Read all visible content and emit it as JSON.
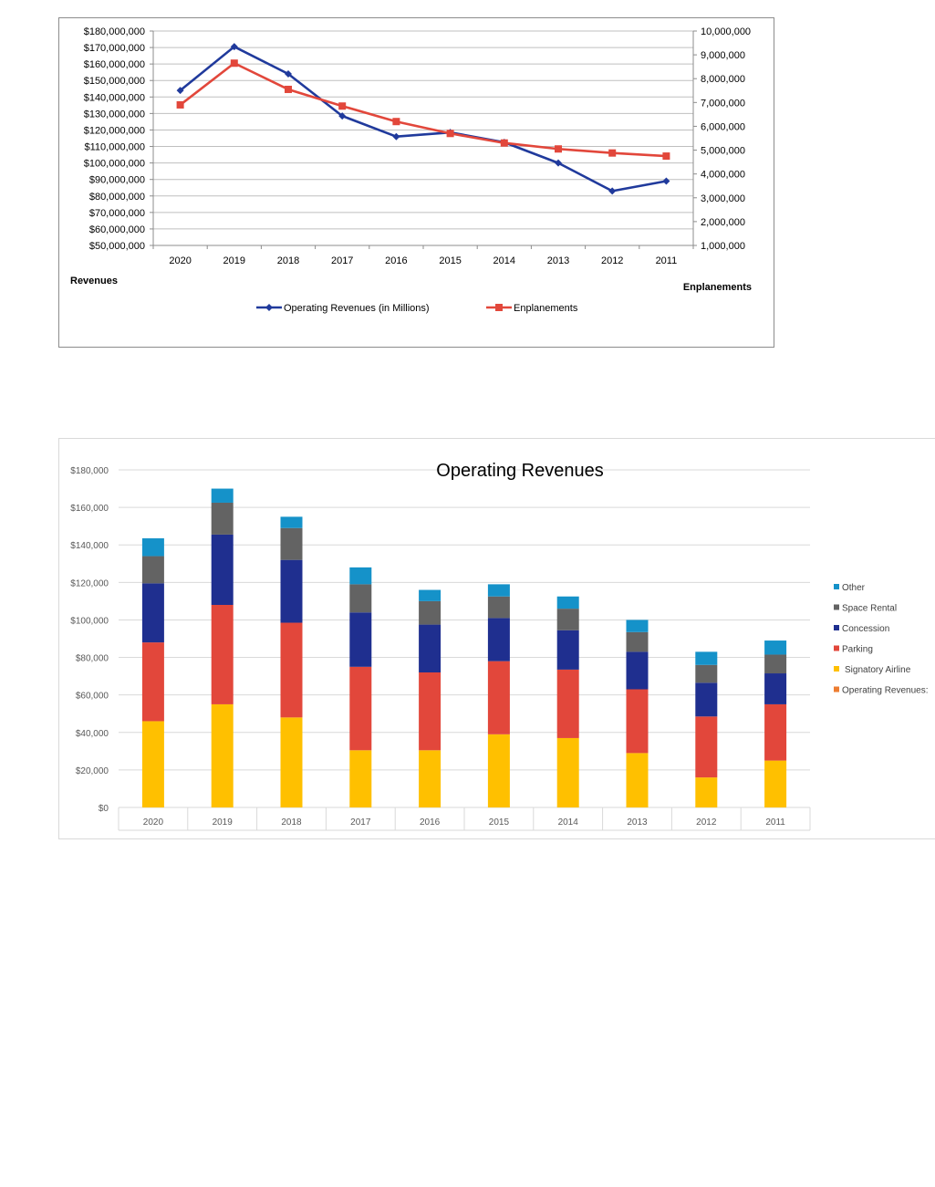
{
  "chart_data": [
    {
      "type": "line",
      "title": "",
      "categories": [
        "2020",
        "2019",
        "2018",
        "2017",
        "2016",
        "2015",
        "2014",
        "2013",
        "2012",
        "2011"
      ],
      "series": [
        {
          "name": "Operating Revenues (in Millions)",
          "axis": "left",
          "color": "#203a9c",
          "values": [
            144000000,
            170500000,
            154000000,
            128500000,
            116000000,
            118500000,
            112500000,
            100000000,
            83000000,
            89000000
          ]
        },
        {
          "name": "Enplanements",
          "axis": "right",
          "color": "#e2473b",
          "values": [
            6900000,
            8650000,
            7550000,
            6850000,
            6200000,
            5700000,
            5300000,
            5050000,
            4880000,
            4750000
          ]
        }
      ],
      "left_axis": {
        "label": "Revenues",
        "min": 50000000,
        "max": 180000000,
        "step": 10000000,
        "ticks": [
          "$50,000,000",
          "$60,000,000",
          "$70,000,000",
          "$80,000,000",
          "$90,000,000",
          "$100,000,000",
          "$110,000,000",
          "$120,000,000",
          "$130,000,000",
          "$140,000,000",
          "$150,000,000",
          "$160,000,000",
          "$170,000,000",
          "$180,000,000"
        ]
      },
      "right_axis": {
        "label": "Enplanements",
        "min": 1000000,
        "max": 10000000,
        "step": 1000000,
        "ticks": [
          "1,000,000",
          "2,000,000",
          "3,000,000",
          "4,000,000",
          "5,000,000",
          "6,000,000",
          "7,000,000",
          "8,000,000",
          "9,000,000",
          "10,000,000"
        ]
      },
      "grid": true,
      "legend": "bottom"
    },
    {
      "type": "bar",
      "stacked": true,
      "title": "Operating Revenues",
      "categories": [
        "2020",
        "2019",
        "2018",
        "2017",
        "2016",
        "2015",
        "2014",
        "2013",
        "2012",
        "2011"
      ],
      "series": [
        {
          "name": "Signatory Airline",
          "color": "#ffc000",
          "values": [
            46000,
            55000,
            48000,
            30500,
            30500,
            39000,
            37000,
            29000,
            16000,
            25000
          ]
        },
        {
          "name": "Parking",
          "color": "#e2473b",
          "values": [
            42000,
            53000,
            50500,
            44500,
            41500,
            39000,
            36500,
            34000,
            32500,
            30000
          ]
        },
        {
          "name": "Concession",
          "color": "#1f2f8f",
          "values": [
            31500,
            37500,
            33500,
            29000,
            25500,
            23000,
            21000,
            20000,
            18000,
            16500
          ]
        },
        {
          "name": "Space Rental",
          "color": "#636363",
          "values": [
            14500,
            17000,
            17000,
            15000,
            12500,
            11500,
            11500,
            10500,
            9500,
            10000
          ]
        },
        {
          "name": "Other",
          "color": "#1592c9",
          "values": [
            9500,
            7500,
            6000,
            9000,
            6000,
            6500,
            6500,
            6500,
            7000,
            7500
          ]
        },
        {
          "name": "Operating Revenues:",
          "color": "#ed7d31",
          "values": [
            0,
            0,
            0,
            0,
            0,
            0,
            0,
            0,
            0,
            0
          ]
        }
      ],
      "ylim": [
        0,
        180000
      ],
      "ystep": 20000,
      "yticks": [
        "$0",
        "$20,000",
        "$40,000",
        "$60,000",
        "$80,000",
        "$100,000",
        "$120,000",
        "$140,000",
        "$160,000",
        "$180,000"
      ],
      "grid": true,
      "legend": "right"
    }
  ]
}
